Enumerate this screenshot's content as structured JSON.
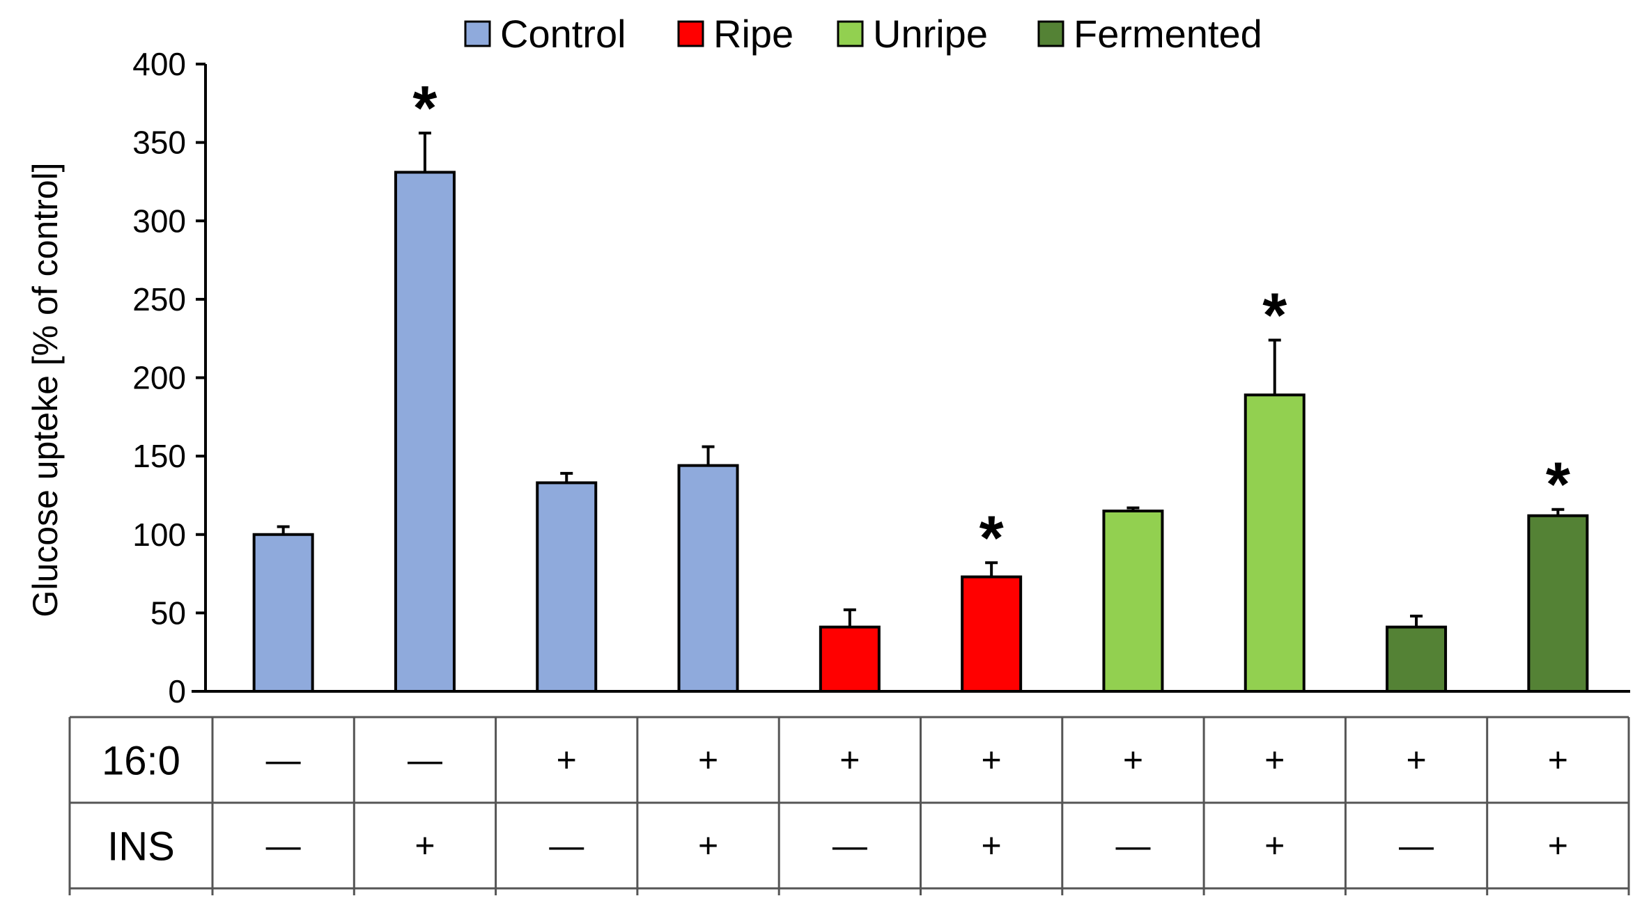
{
  "chart_data": {
    "type": "bar",
    "ylabel": "Glucose upteke [% of control]",
    "xlabel": "",
    "ylim": [
      0,
      400
    ],
    "yticks": [
      0,
      50,
      100,
      150,
      200,
      250,
      300,
      350,
      400
    ],
    "grid": false,
    "legend_position": "top",
    "legend": [
      {
        "name": "Control",
        "color": "#8FAADC"
      },
      {
        "name": "Ripe",
        "color": "#FF0000"
      },
      {
        "name": "Unripe",
        "color": "#92D050"
      },
      {
        "name": "Fermented",
        "color": "#548235"
      }
    ],
    "bars": [
      {
        "group": "Control",
        "value": 100,
        "error": 5,
        "significant": false
      },
      {
        "group": "Control",
        "value": 331,
        "error": 25,
        "significant": true
      },
      {
        "group": "Control",
        "value": 133,
        "error": 6,
        "significant": false
      },
      {
        "group": "Control",
        "value": 144,
        "error": 12,
        "significant": false
      },
      {
        "group": "Ripe",
        "value": 41,
        "error": 11,
        "significant": false
      },
      {
        "group": "Ripe",
        "value": 73,
        "error": 9,
        "significant": true
      },
      {
        "group": "Unripe",
        "value": 115,
        "error": 2,
        "significant": false
      },
      {
        "group": "Unripe",
        "value": 189,
        "error": 35,
        "significant": true
      },
      {
        "group": "Fermented",
        "value": 41,
        "error": 7,
        "significant": false
      },
      {
        "group": "Fermented",
        "value": 112,
        "error": 4,
        "significant": true
      }
    ],
    "significance_marker": "*",
    "treatment_table": {
      "rows": [
        {
          "label": "16:0",
          "values": [
            "—",
            "—",
            "+",
            "+",
            "+",
            "+",
            "+",
            "+",
            "+",
            "+"
          ]
        },
        {
          "label": "INS",
          "values": [
            "—",
            "+",
            "—",
            "+",
            "—",
            "+",
            "—",
            "+",
            "—",
            "+"
          ]
        }
      ]
    }
  }
}
